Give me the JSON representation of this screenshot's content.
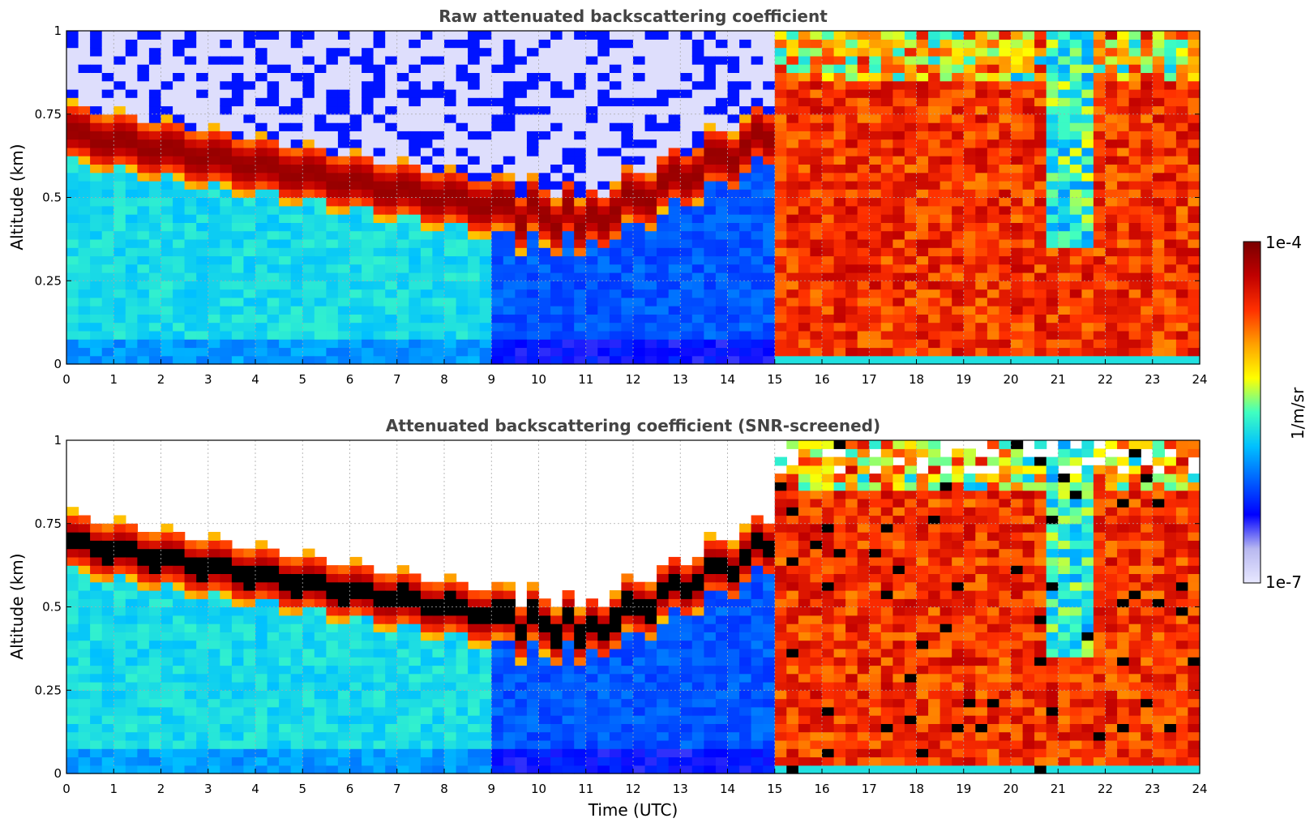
{
  "colormap": [
    "#e8e8ff",
    "#b8b8f0",
    "#0000ff",
    "#0060ff",
    "#00c0ff",
    "#40ffc0",
    "#ffff00",
    "#ffa000",
    "#ff3000",
    "#c00000",
    "#7a0000"
  ],
  "colorbar": {
    "top_label": "1e-4",
    "bottom_label": "1e-7",
    "unit_label": "1/m/sr",
    "vmin_exp": -7,
    "vmax_exp": -4
  },
  "chart_data": [
    {
      "type": "heatmap",
      "title": "Raw attenuated backscattering coefficient",
      "ylabel": "Altitude (km)",
      "xlabel": "",
      "xlim": [
        0,
        24
      ],
      "ylim": [
        0,
        1
      ],
      "x_ticks": [
        "0",
        "1",
        "2",
        "3",
        "4",
        "5",
        "6",
        "7",
        "8",
        "9",
        "10",
        "11",
        "12",
        "13",
        "14",
        "15",
        "16",
        "17",
        "18",
        "19",
        "20",
        "21",
        "22",
        "23",
        "24"
      ],
      "y_ticks": [
        "0",
        "0.25",
        "0.5",
        "0.75",
        "1"
      ],
      "grid": true,
      "screened": false
    },
    {
      "type": "heatmap",
      "title": "Attenuated backscattering coefficient (SNR-screened)",
      "ylabel": "Altitude (km)",
      "xlabel": "Time (UTC)",
      "xlim": [
        0,
        24
      ],
      "ylim": [
        0,
        1
      ],
      "x_ticks": [
        "0",
        "1",
        "2",
        "3",
        "4",
        "5",
        "6",
        "7",
        "8",
        "9",
        "10",
        "11",
        "12",
        "13",
        "14",
        "15",
        "16",
        "17",
        "18",
        "19",
        "20",
        "21",
        "22",
        "23",
        "24"
      ],
      "y_ticks": [
        "0",
        "0.25",
        "0.5",
        "0.75",
        "1"
      ],
      "grid": true,
      "screened": true
    }
  ]
}
